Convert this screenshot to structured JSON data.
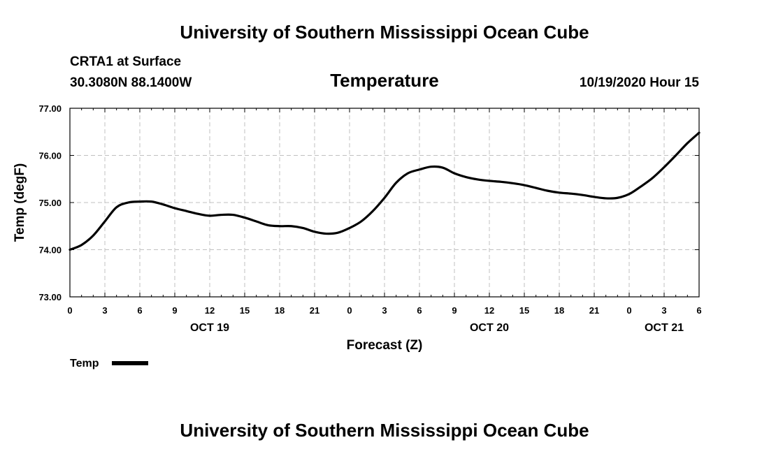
{
  "header": {
    "title": "University of Southern Mississippi Ocean Cube",
    "station": "CRTA1 at Surface",
    "location": "30.3080N 88.1400W",
    "datetime": "10/19/2020 Hour 15"
  },
  "footer": {
    "title": "University of Southern Mississippi Ocean Cube"
  },
  "colors": {
    "line": "#000000",
    "grid": "#c0c0c0"
  },
  "chart_data": {
    "type": "line",
    "title": "Temperature",
    "xlabel": "Forecast (Z)",
    "ylabel": "Temp (degF)",
    "xlim": [
      0,
      54
    ],
    "ylim": [
      73,
      77
    ],
    "y_ticks": [
      "73.00",
      "74.00",
      "75.00",
      "76.00",
      "77.00"
    ],
    "x_ticks": [
      {
        "x": 0,
        "label": "0"
      },
      {
        "x": 3,
        "label": "3"
      },
      {
        "x": 6,
        "label": "6"
      },
      {
        "x": 9,
        "label": "9"
      },
      {
        "x": 12,
        "label": "12"
      },
      {
        "x": 15,
        "label": "15"
      },
      {
        "x": 18,
        "label": "18"
      },
      {
        "x": 21,
        "label": "21"
      },
      {
        "x": 24,
        "label": "0"
      },
      {
        "x": 27,
        "label": "3"
      },
      {
        "x": 30,
        "label": "6"
      },
      {
        "x": 33,
        "label": "9"
      },
      {
        "x": 36,
        "label": "12"
      },
      {
        "x": 39,
        "label": "15"
      },
      {
        "x": 42,
        "label": "18"
      },
      {
        "x": 45,
        "label": "21"
      },
      {
        "x": 48,
        "label": "0"
      },
      {
        "x": 51,
        "label": "3"
      },
      {
        "x": 54,
        "label": "6"
      }
    ],
    "date_labels": [
      {
        "x": 12,
        "label": "OCT 19"
      },
      {
        "x": 36,
        "label": "OCT 20"
      },
      {
        "x": 51,
        "label": "OCT 21"
      }
    ],
    "grid": true,
    "legend": {
      "position": "bottom-left",
      "entries": [
        "Temp"
      ]
    },
    "series": [
      {
        "name": "Temp",
        "x": [
          0,
          1,
          2,
          3,
          4,
          5,
          6,
          7,
          8,
          9,
          10,
          11,
          12,
          13,
          14,
          15,
          16,
          17,
          18,
          19,
          20,
          21,
          22,
          23,
          24,
          25,
          26,
          27,
          28,
          29,
          30,
          31,
          32,
          33,
          34,
          35,
          36,
          37,
          38,
          39,
          40,
          41,
          42,
          43,
          44,
          45,
          46,
          47,
          48,
          49,
          50,
          51,
          52,
          53,
          54
        ],
        "values": [
          74.0,
          74.1,
          74.3,
          74.6,
          74.9,
          75.0,
          75.02,
          75.02,
          74.96,
          74.88,
          74.82,
          74.76,
          74.72,
          74.74,
          74.74,
          74.68,
          74.6,
          74.52,
          74.5,
          74.5,
          74.46,
          74.38,
          74.34,
          74.36,
          74.46,
          74.6,
          74.82,
          75.1,
          75.42,
          75.62,
          75.7,
          75.76,
          75.74,
          75.62,
          75.54,
          75.49,
          75.46,
          75.44,
          75.41,
          75.37,
          75.31,
          75.25,
          75.21,
          75.19,
          75.16,
          75.12,
          75.09,
          75.1,
          75.18,
          75.34,
          75.52,
          75.75,
          76.0,
          76.26,
          76.48
        ]
      }
    ]
  }
}
